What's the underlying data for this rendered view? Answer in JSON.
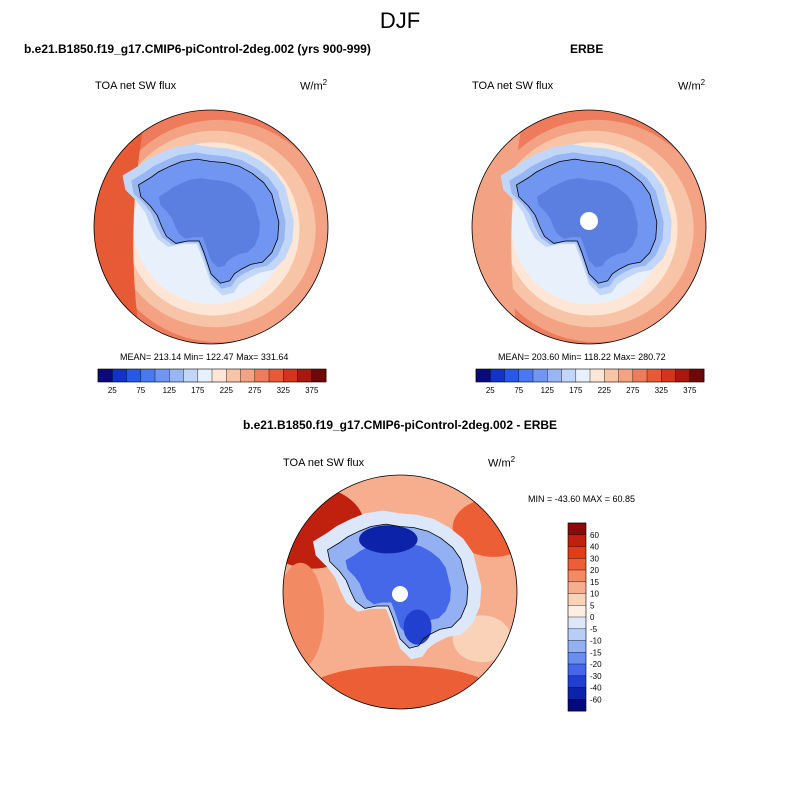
{
  "title": "DJF",
  "panels": [
    {
      "title": "b.e21.B1850.f19_g17.CMIP6-piControl-2deg.002 (yrs 900-999)",
      "variable": "TOA net SW flux",
      "units_base": "W/m",
      "units_exp": "2",
      "stats": "MEAN= 213.14  Min= 122.47  Max= 331.64",
      "colorbar_labels": [
        "25",
        "75",
        "125",
        "175",
        "225",
        "275",
        "325",
        "375"
      ]
    },
    {
      "title": "ERBE",
      "variable": "TOA net SW flux",
      "units_base": "W/m",
      "units_exp": "2",
      "stats": "MEAN= 203.60  Min= 118.22  Max= 280.72",
      "colorbar_labels": [
        "25",
        "75",
        "125",
        "175",
        "225",
        "275",
        "325",
        "375"
      ]
    },
    {
      "title": "b.e21.B1850.f19_g17.CMIP6-piControl-2deg.002 - ERBE",
      "variable": "TOA net SW flux",
      "units_base": "W/m",
      "units_exp": "2",
      "stats": "MIN = -43.60 MAX =  60.85",
      "colorbar_labels": [
        "60",
        "40",
        "30",
        "20",
        "15",
        "10",
        "5",
        "0",
        "-5",
        "-10",
        "-15",
        "-20",
        "-30",
        "-40",
        "-60"
      ]
    }
  ],
  "colors": {
    "abs_scale": [
      "#0a0a7a",
      "#1232c8",
      "#2858e6",
      "#4a78f0",
      "#7096f2",
      "#98b6f4",
      "#c2d6f8",
      "#e8f0fc",
      "#fde6d6",
      "#f8c4a8",
      "#f4a284",
      "#ee7c5c",
      "#e65a36",
      "#d4341c",
      "#a8180e",
      "#700808"
    ],
    "diff_scale": [
      "#8a0a0a",
      "#c0200e",
      "#e03c1a",
      "#ec5e36",
      "#f28a64",
      "#f6ae8e",
      "#fad2b8",
      "#fdeee2",
      "#dce8fa",
      "#b8cef6",
      "#92b0f2",
      "#6a8ef0",
      "#4468e8",
      "#2240d0",
      "#0c22a8",
      "#050a7a"
    ],
    "land_fill": "#5a7fe0",
    "coast": "#000000"
  },
  "icons": [
    "south-polar-stereographic-map"
  ]
}
